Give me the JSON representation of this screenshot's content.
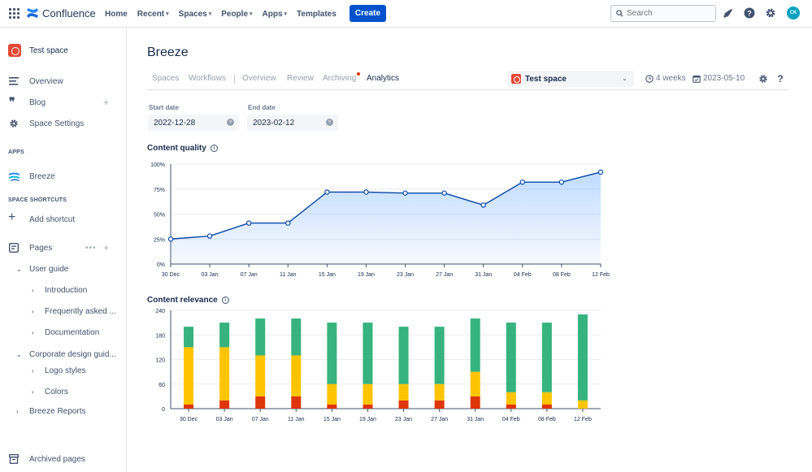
{
  "topnav": {
    "product": "Confluence",
    "links": [
      {
        "label": "Home",
        "caret": false
      },
      {
        "label": "Recent",
        "caret": true
      },
      {
        "label": "Spaces",
        "caret": true
      },
      {
        "label": "People",
        "caret": true
      },
      {
        "label": "Apps",
        "caret": true
      },
      {
        "label": "Templates",
        "caret": false
      }
    ],
    "create_label": "Create",
    "search_placeholder": "Search",
    "avatar_initials": "CK"
  },
  "sidebar": {
    "space_name": "Test space",
    "overview": "Overview",
    "blog": "Blog",
    "space_settings": "Space Settings",
    "apps_heading": "APPS",
    "breeze": "Breeze",
    "shortcuts_heading": "SPACE SHORTCUTS",
    "add_shortcut": "Add shortcut",
    "pages": "Pages",
    "user_guide": "User guide",
    "introduction": "Introduction",
    "faq": "Frequently asked ...",
    "documentation": "Documentation",
    "corporate": "Corporate design guid...",
    "logo_styles": "Logo styles",
    "colors": "Colors",
    "breeze_reports": "Breeze Reports",
    "archived": "Archived pages"
  },
  "main": {
    "title": "Breeze",
    "tabs": [
      "Spaces",
      "Workflows",
      "Overview",
      "Review",
      "Archiving",
      "Analytics"
    ],
    "active_tab": "Analytics",
    "space_select": "Test space",
    "period": "4 weeks",
    "date": "2023-05-10",
    "start_label": "Start date",
    "start_value": "2022-12-28",
    "end_label": "End date",
    "end_value": "2023-02-12",
    "quality_title": "Content quality",
    "relevance_title": "Content relevance"
  },
  "colors": {
    "accent": "#0052CC",
    "line": "#0747A6",
    "green": "#36B37E",
    "yellow": "#FFC400",
    "red": "#DE350B"
  },
  "chart_data": [
    {
      "type": "area",
      "title": "Content quality",
      "x": [
        "30 Dec",
        "03 Jan",
        "07 Jan",
        "11 Jan",
        "15 Jan",
        "19 Jan",
        "23 Jan",
        "27 Jan",
        "31 Jan",
        "04 Feb",
        "08 Feb",
        "12 Feb"
      ],
      "values": [
        25,
        28,
        41,
        41,
        72,
        72,
        71,
        71,
        59,
        82,
        82,
        92
      ],
      "yticks": [
        "0%",
        "25%",
        "50%",
        "75%",
        "100%"
      ],
      "ylim": [
        0,
        100
      ],
      "grid": true
    },
    {
      "type": "bar",
      "stacked": true,
      "title": "Content relevance",
      "categories": [
        "30 Dec",
        "03 Jan",
        "07 Jan",
        "11 Jan",
        "15 Jan",
        "19 Jan",
        "23 Jan",
        "27 Jan",
        "31 Jan",
        "04 Feb",
        "08 Feb",
        "12 Feb"
      ],
      "series": [
        {
          "color": "#DE350B",
          "values": [
            10,
            20,
            30,
            30,
            10,
            10,
            20,
            20,
            30,
            10,
            10,
            0
          ]
        },
        {
          "color": "#FFC400",
          "values": [
            140,
            130,
            100,
            100,
            50,
            50,
            40,
            40,
            60,
            30,
            30,
            20
          ]
        },
        {
          "color": "#36B37E",
          "values": [
            50,
            60,
            90,
            90,
            150,
            150,
            140,
            140,
            130,
            170,
            170,
            210
          ]
        }
      ],
      "yticks": [
        "0",
        "60",
        "120",
        "180",
        "240"
      ],
      "ylim": [
        0,
        240
      ],
      "grid": true
    }
  ]
}
